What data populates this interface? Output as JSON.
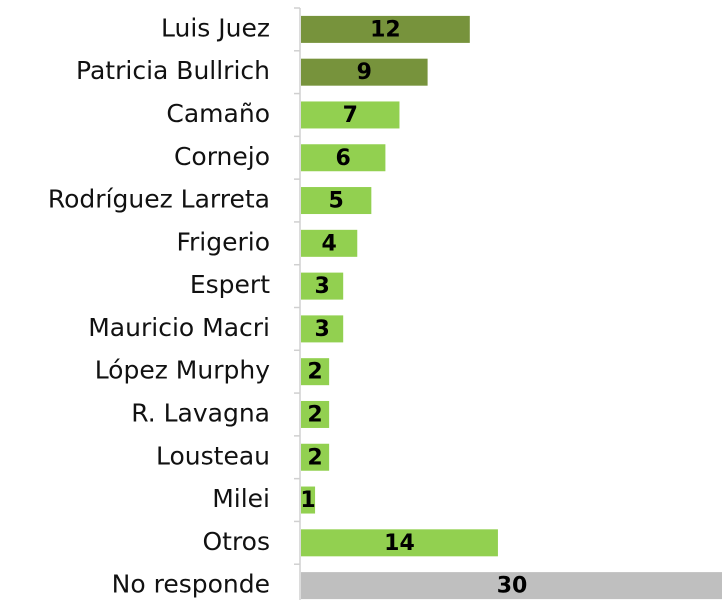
{
  "chart_data": {
    "type": "barh",
    "categories": [
      "Luis Juez",
      "Patricia Bullrich",
      "Camaño",
      "Cornejo",
      "Rodríguez Larreta",
      "Frigerio",
      "Espert",
      "Mauricio Macri",
      "López Murphy",
      "R. Lavagna",
      "Lousteau",
      "Milei",
      "Otros",
      "No responde"
    ],
    "values": [
      12,
      9,
      7,
      6,
      5,
      4,
      3,
      3,
      2,
      2,
      2,
      1,
      14,
      30
    ],
    "colors": [
      "#77933c",
      "#77933c",
      "#92d050",
      "#92d050",
      "#92d050",
      "#92d050",
      "#92d050",
      "#92d050",
      "#92d050",
      "#92d050",
      "#92d050",
      "#92d050",
      "#92d050",
      "#bfbfbf"
    ],
    "xlim": [
      0,
      30
    ]
  }
}
